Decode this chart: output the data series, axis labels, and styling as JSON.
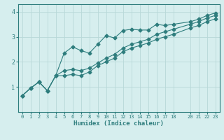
{
  "xlabel": "Humidex (Indice chaleur)",
  "ylabel": "",
  "background_color": "#d6eeee",
  "grid_color": "#b8d8d8",
  "line_color": "#2e7d7d",
  "xlim": [
    -0.5,
    23.5
  ],
  "ylim": [
    0,
    4.3
  ],
  "xticks": [
    0,
    1,
    2,
    3,
    4,
    5,
    6,
    7,
    8,
    9,
    10,
    11,
    12,
    13,
    14,
    15,
    16,
    17,
    18,
    20,
    21,
    22,
    23
  ],
  "yticks": [
    1,
    2,
    3,
    4
  ],
  "line1_x": [
    0,
    1,
    2,
    3,
    4,
    5,
    6,
    7,
    8,
    9,
    10,
    11,
    12,
    13,
    14,
    15,
    16,
    17,
    18,
    20,
    21,
    22,
    23
  ],
  "line1_y": [
    0.65,
    0.95,
    1.2,
    0.85,
    1.45,
    2.35,
    2.6,
    2.45,
    2.35,
    2.7,
    3.05,
    2.95,
    3.25,
    3.3,
    3.27,
    3.27,
    3.5,
    3.45,
    3.5,
    3.6,
    3.7,
    3.85,
    3.95
  ],
  "line2_x": [
    0,
    1,
    2,
    3,
    4,
    5,
    6,
    7,
    8,
    9,
    10,
    11,
    12,
    13,
    14,
    15,
    16,
    17,
    18,
    20,
    21,
    22,
    23
  ],
  "line2_y": [
    0.65,
    0.95,
    1.2,
    0.85,
    1.45,
    1.65,
    1.7,
    1.65,
    1.75,
    1.95,
    2.15,
    2.3,
    2.55,
    2.7,
    2.8,
    2.9,
    3.1,
    3.2,
    3.3,
    3.5,
    3.6,
    3.75,
    3.85
  ],
  "line3_x": [
    0,
    1,
    2,
    3,
    4,
    5,
    6,
    7,
    8,
    9,
    10,
    11,
    12,
    13,
    14,
    15,
    16,
    17,
    18,
    20,
    21,
    22,
    23
  ],
  "line3_y": [
    0.65,
    0.95,
    1.2,
    0.85,
    1.45,
    1.45,
    1.5,
    1.45,
    1.6,
    1.85,
    2.0,
    2.15,
    2.4,
    2.55,
    2.65,
    2.75,
    2.9,
    3.0,
    3.1,
    3.35,
    3.45,
    3.6,
    3.72
  ]
}
